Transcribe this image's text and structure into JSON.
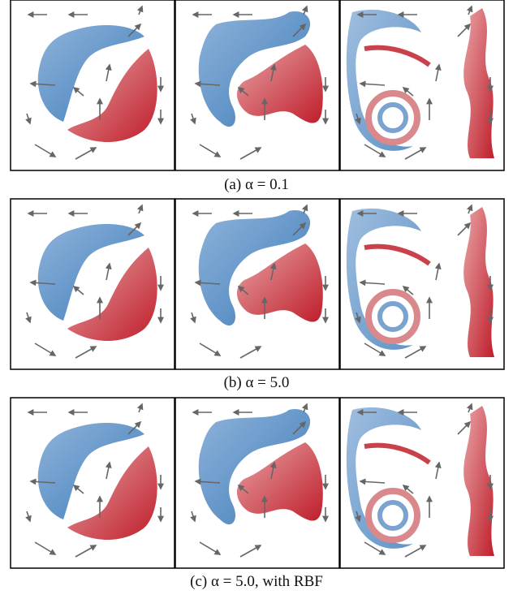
{
  "figure": {
    "captions": [
      "(a) α = 0.1",
      "(b) α = 5.0",
      "(c) α = 5.0, with RBF"
    ]
  }
}
